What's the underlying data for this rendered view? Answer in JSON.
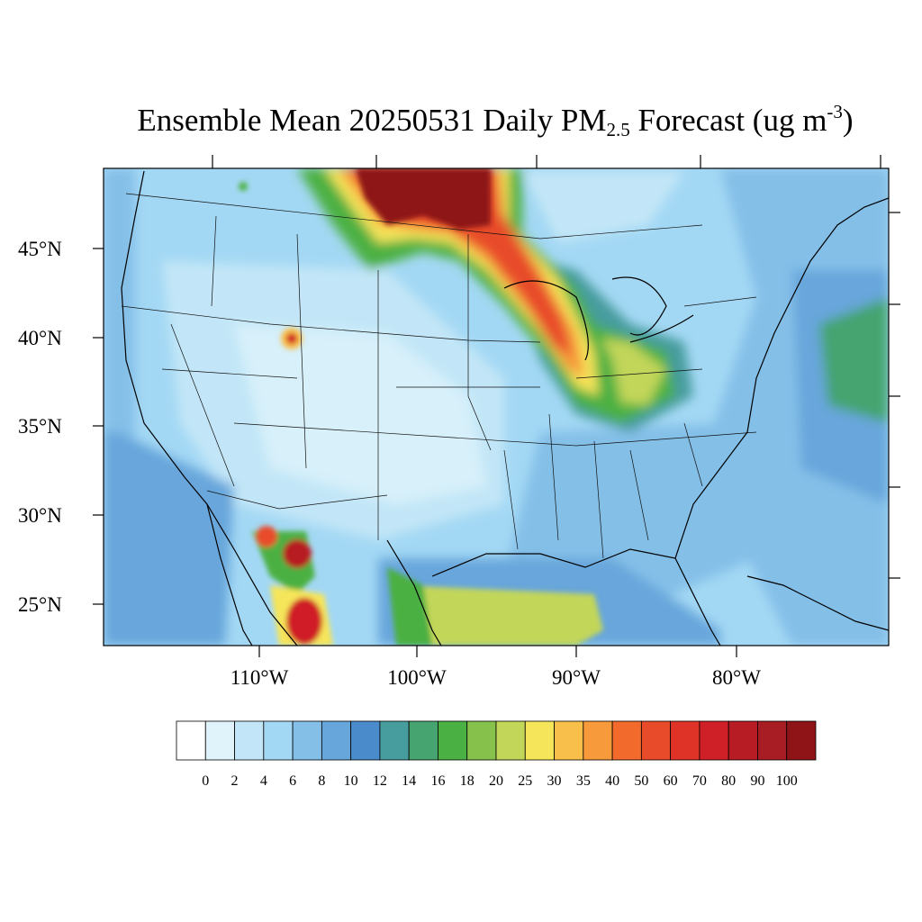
{
  "title": {
    "main": "Ensemble Mean 20250531 Daily PM",
    "subscript": "2.5",
    "suffix": " Forecast (ug m",
    "superscript": "-3",
    "close": ")"
  },
  "axes": {
    "lat_labels": [
      "45°N",
      "40°N",
      "35°N",
      "30°N",
      "25°N"
    ],
    "lon_labels": [
      "110°W",
      "100°W",
      "90°W",
      "80°W"
    ]
  },
  "colorbar": {
    "labels": [
      "0",
      "2",
      "4",
      "6",
      "8",
      "10",
      "12",
      "14",
      "16",
      "18",
      "20",
      "25",
      "30",
      "35",
      "40",
      "50",
      "60",
      "70",
      "80",
      "90",
      "100"
    ],
    "colors": [
      "#ffffff",
      "#e0f3fb",
      "#c2e6f7",
      "#a3d8f4",
      "#84bfe8",
      "#67a6db",
      "#4a8ccb",
      "#479c9e",
      "#45a46f",
      "#4bb043",
      "#86c14b",
      "#c2d65a",
      "#f5e55a",
      "#f8c04a",
      "#f69a3b",
      "#f26a2c",
      "#e84b2a",
      "#de3326",
      "#cf1f27",
      "#b71b24",
      "#a81c23",
      "#8e1417"
    ]
  },
  "map_data": {
    "type": "filled-contour-map",
    "variable": "Daily PM2.5",
    "units": "ug m-3",
    "date": "20250531",
    "lon_range": [
      -119,
      -71
    ],
    "lat_range": [
      22.5,
      49.5
    ],
    "plumes": [
      {
        "region": "southern Canada / northern Minnesota",
        "level": "100+"
      },
      {
        "region": "Minnesota to Indiana corridor",
        "level": "30-60"
      },
      {
        "region": "Ohio Valley",
        "level": "20-25"
      },
      {
        "region": "western Mexico",
        "level": "100+"
      },
      {
        "region": "Gulf of Mexico / south Texas",
        "level": "20-25"
      },
      {
        "region": "western Atlantic",
        "level": "16-18"
      }
    ]
  }
}
